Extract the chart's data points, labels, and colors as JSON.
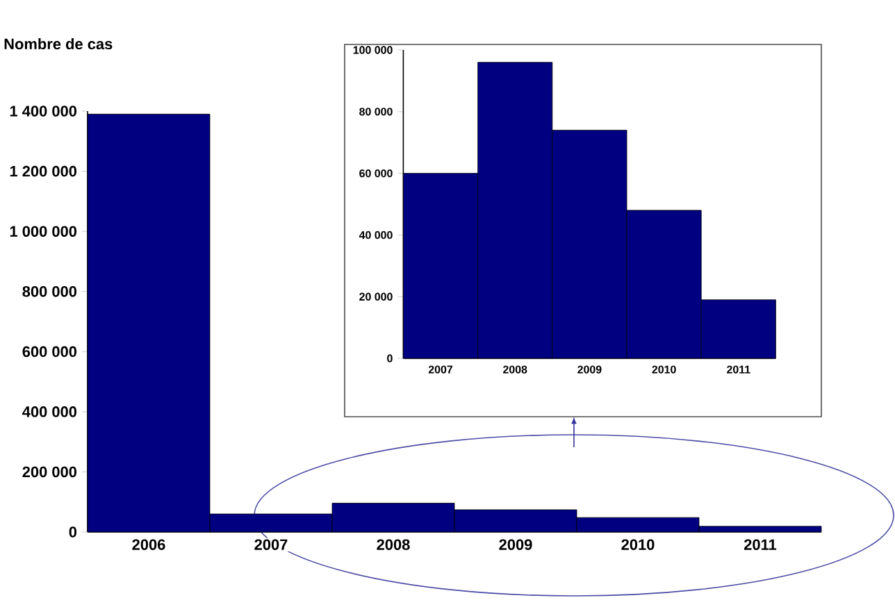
{
  "chart_data": [
    {
      "type": "bar",
      "ylabel": "Nombre de cas",
      "categories": [
        "2006",
        "2007",
        "2008",
        "2009",
        "2010",
        "2011"
      ],
      "values": [
        1390000,
        60000,
        96000,
        74000,
        48000,
        19000
      ],
      "color": "#000080",
      "ylim": [
        0,
        1400000
      ],
      "yticks": [
        0,
        {
          "value": 200000,
          "label": "200 000"
        },
        {
          "value": 400000,
          "label": "400 000"
        },
        {
          "value": 600000,
          "label": "600 000"
        },
        {
          "value": 800000,
          "label": "800 000"
        },
        {
          "value": 1000000,
          "label": "1 000 000"
        },
        {
          "value": 1200000,
          "label": "1 200 000"
        },
        {
          "value": 1400000,
          "label": "1 400 000"
        }
      ]
    },
    {
      "type": "bar",
      "categories": [
        "2007",
        "2008",
        "2009",
        "2010",
        "2011"
      ],
      "values": [
        60000,
        96000,
        74000,
        48000,
        19000
      ],
      "color": "#000080",
      "ylim": [
        0,
        100000
      ],
      "yticks": [
        0,
        {
          "value": 20000,
          "label": "20 000"
        },
        {
          "value": 40000,
          "label": "40 000"
        },
        {
          "value": 60000,
          "label": "60 000"
        },
        {
          "value": 80000,
          "label": "80 000"
        },
        {
          "value": 100000,
          "label": "100 000"
        }
      ]
    }
  ]
}
